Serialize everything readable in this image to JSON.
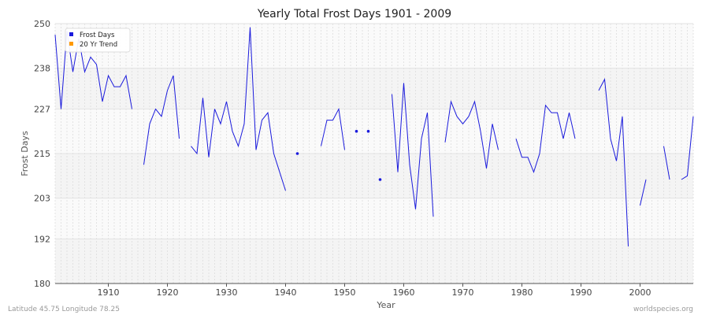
{
  "chart_data": {
    "type": "line",
    "title": "Yearly Total Frost Days 1901 - 2009",
    "xlabel": "Year",
    "ylabel": "Frost Days",
    "xlim": [
      1901,
      2009
    ],
    "ylim": [
      180,
      250
    ],
    "yticks": [
      180,
      192,
      203,
      215,
      227,
      238,
      250
    ],
    "xticks": [
      1910,
      1920,
      1930,
      1940,
      1950,
      1960,
      1970,
      1980,
      1990,
      2000
    ],
    "grid": true,
    "legend_position": "top-left",
    "colors": {
      "frost": "#1a1adc",
      "trend": "#ff9900"
    },
    "series": [
      {
        "name": "Frost Days",
        "x": [
          1901,
          1902,
          1903,
          1904,
          1905,
          1906,
          1907,
          1908,
          1909,
          1910,
          1911,
          1912,
          1913,
          1914,
          1915,
          1916,
          1917,
          1918,
          1919,
          1920,
          1921,
          1922,
          1923,
          1924,
          1925,
          1926,
          1927,
          1928,
          1929,
          1930,
          1931,
          1932,
          1933,
          1934,
          1935,
          1936,
          1937,
          1938,
          1939,
          1940,
          1941,
          1942,
          1943,
          1944,
          1945,
          1946,
          1947,
          1948,
          1949,
          1950,
          1951,
          1952,
          1953,
          1954,
          1955,
          1956,
          1957,
          1958,
          1959,
          1960,
          1961,
          1962,
          1963,
          1964,
          1965,
          1966,
          1967,
          1968,
          1969,
          1970,
          1971,
          1972,
          1973,
          1974,
          1975,
          1976,
          1977,
          1978,
          1979,
          1980,
          1981,
          1982,
          1983,
          1984,
          1985,
          1986,
          1987,
          1988,
          1989,
          1990,
          1991,
          1992,
          1993,
          1994,
          1995,
          1996,
          1997,
          1998,
          1999,
          2000,
          2001,
          2002,
          2003,
          2004,
          2005,
          2006,
          2007,
          2008,
          2009
        ],
        "values": [
          247,
          227,
          248,
          237,
          246,
          237,
          241,
          239,
          229,
          236,
          233,
          233,
          236,
          227,
          null,
          212,
          223,
          227,
          225,
          232,
          236,
          219,
          null,
          217,
          215,
          230,
          214,
          227,
          223,
          229,
          221,
          217,
          223,
          249,
          216,
          224,
          226,
          215,
          210,
          205,
          null,
          215,
          null,
          null,
          null,
          217,
          224,
          224,
          227,
          216,
          null,
          221,
          null,
          221,
          null,
          208,
          null,
          231,
          210,
          234,
          212,
          200,
          219,
          226,
          198,
          null,
          218,
          229,
          225,
          223,
          225,
          229,
          221,
          211,
          223,
          216,
          null,
          null,
          219,
          214,
          214,
          210,
          215,
          228,
          226,
          226,
          219,
          226,
          219,
          null,
          null,
          null,
          232,
          235,
          219,
          213,
          225,
          190,
          null,
          201,
          208,
          null,
          null,
          217,
          208,
          null,
          208,
          209,
          225
        ]
      },
      {
        "name": "20 Yr Trend",
        "x": [],
        "values": []
      }
    ]
  },
  "footer": {
    "left": "Latitude 45.75 Longitude 78.25",
    "right": "worldspecies.org"
  }
}
